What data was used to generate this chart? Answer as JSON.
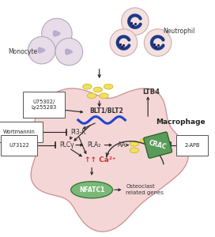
{
  "cell_color": "#f0c0c0",
  "cell_edge": "#c89090",
  "monocyte_color": "#e8dce8",
  "monocyte_edge": "#b0a8c0",
  "monocyte_nucleus": "#b0a8cc",
  "neutrophil_color": "#f5e0e0",
  "neutrophil_edge": "#c8b0b0",
  "neutrophil_nucleus": "#1a3a88",
  "nfatc1_color": "#7ab87a",
  "nfatc1_edge": "#3a7a3a",
  "crac_color": "#5a9a5a",
  "crac_edge": "#2a6a2a",
  "wave_color": "#2244cc",
  "ltb4_color": "#f0e060",
  "ltb4_edge": "#c8b020",
  "arrow_color": "#222222",
  "ca2_color": "#cc3333",
  "box_fc": "#ffffff",
  "box_ec": "#555555",
  "labels": {
    "monocyte": "Monocyte",
    "neutrophil": "Neutrophil",
    "macrophage": "Macrophage",
    "ltb4": "LTB4",
    "blt": "BLT1/BLT2",
    "pi3k": "PI3-K",
    "plcy": "PLCγ",
    "pla2": "PLA₂",
    "aa": "AA",
    "ca2": "↑↑ Ca²⁺",
    "nfatc1": "NFATC1",
    "osteo": "Osteoclast\nrelated genes",
    "u75": "U75302/\nLy255283",
    "wort": "Wortmannin",
    "u73": "U73122",
    "twoapb": "2-APB",
    "crac": "CRAC"
  }
}
